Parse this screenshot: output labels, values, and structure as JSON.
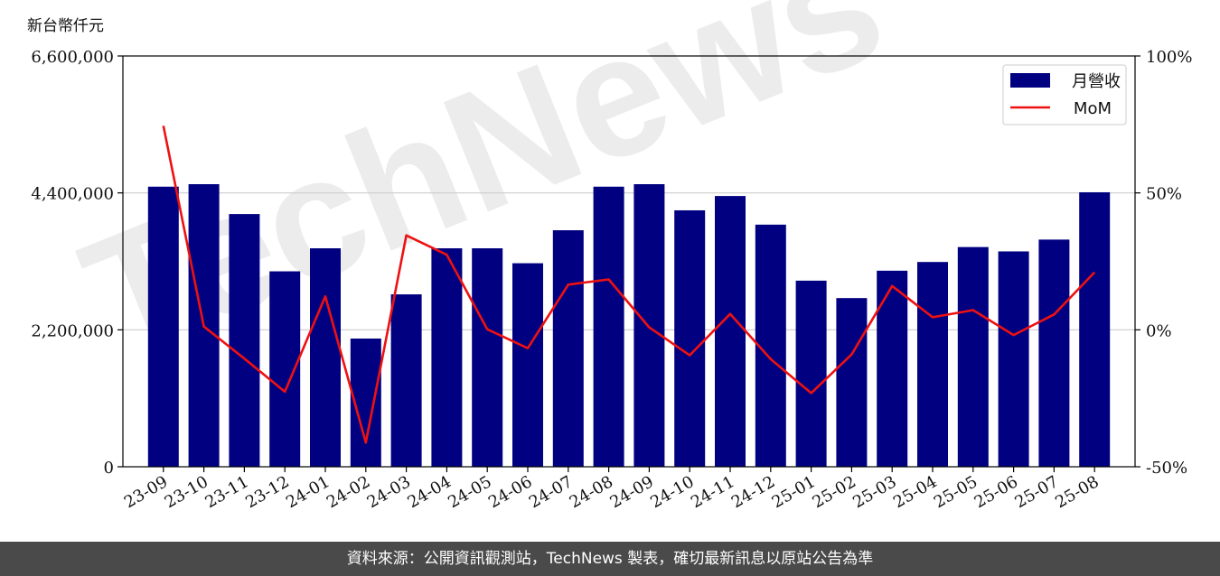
{
  "unit_label": "新台幣仟元",
  "watermark": "TechNews",
  "footer_text": "資料來源：公開資訊觀測站，TechNews 製表，確切最新訊息以原站公告為準",
  "colors": {
    "bar": "#000080",
    "line": "#ee1111",
    "grid": "#cccccc",
    "watermark": "#ececec",
    "footer_bg": "#4a4a4a"
  },
  "chart_data": {
    "type": "bar",
    "categories": [
      "23-09",
      "23-10",
      "23-11",
      "23-12",
      "24-01",
      "24-02",
      "24-03",
      "24-04",
      "24-05",
      "24-06",
      "24-07",
      "24-08",
      "24-09",
      "24-10",
      "24-11",
      "24-12",
      "25-01",
      "25-02",
      "25-03",
      "25-04",
      "25-05",
      "25-06",
      "25-07",
      "25-08"
    ],
    "series": [
      {
        "name": "月營收",
        "type": "bar",
        "axis": "left",
        "values": [
          4500000,
          4540000,
          4060000,
          3140000,
          3510000,
          2060000,
          2770000,
          3510000,
          3510000,
          3270000,
          3800000,
          4500000,
          4540000,
          4120000,
          4350000,
          3890000,
          2990000,
          2710000,
          3150000,
          3290000,
          3530000,
          3460000,
          3650000,
          4410000
        ]
      },
      {
        "name": "MoM",
        "type": "line",
        "axis": "right",
        "values": [
          74.5,
          1.2,
          -10.5,
          -22.6,
          12.2,
          -41.2,
          34.5,
          27.4,
          0.2,
          -6.7,
          16.5,
          18.4,
          0.9,
          -9.3,
          5.8,
          -10.7,
          -23.1,
          -9.0,
          16.0,
          4.6,
          7.2,
          -1.9,
          5.6,
          21.0
        ]
      }
    ],
    "y_left": {
      "min": 0,
      "max": 6600000,
      "ticks": [
        0,
        2200000,
        4400000,
        6600000
      ],
      "tick_labels": [
        "0",
        "2,200,000",
        "4,400,000",
        "6,600,000"
      ]
    },
    "y_right": {
      "min": -50,
      "max": 100,
      "ticks": [
        -50,
        0,
        50,
        100
      ],
      "tick_labels": [
        "-50%",
        "0%",
        "50%",
        "100%"
      ]
    },
    "grid": true,
    "legend": {
      "placement": "top-right",
      "entries": [
        "月營收",
        "MoM"
      ]
    }
  }
}
